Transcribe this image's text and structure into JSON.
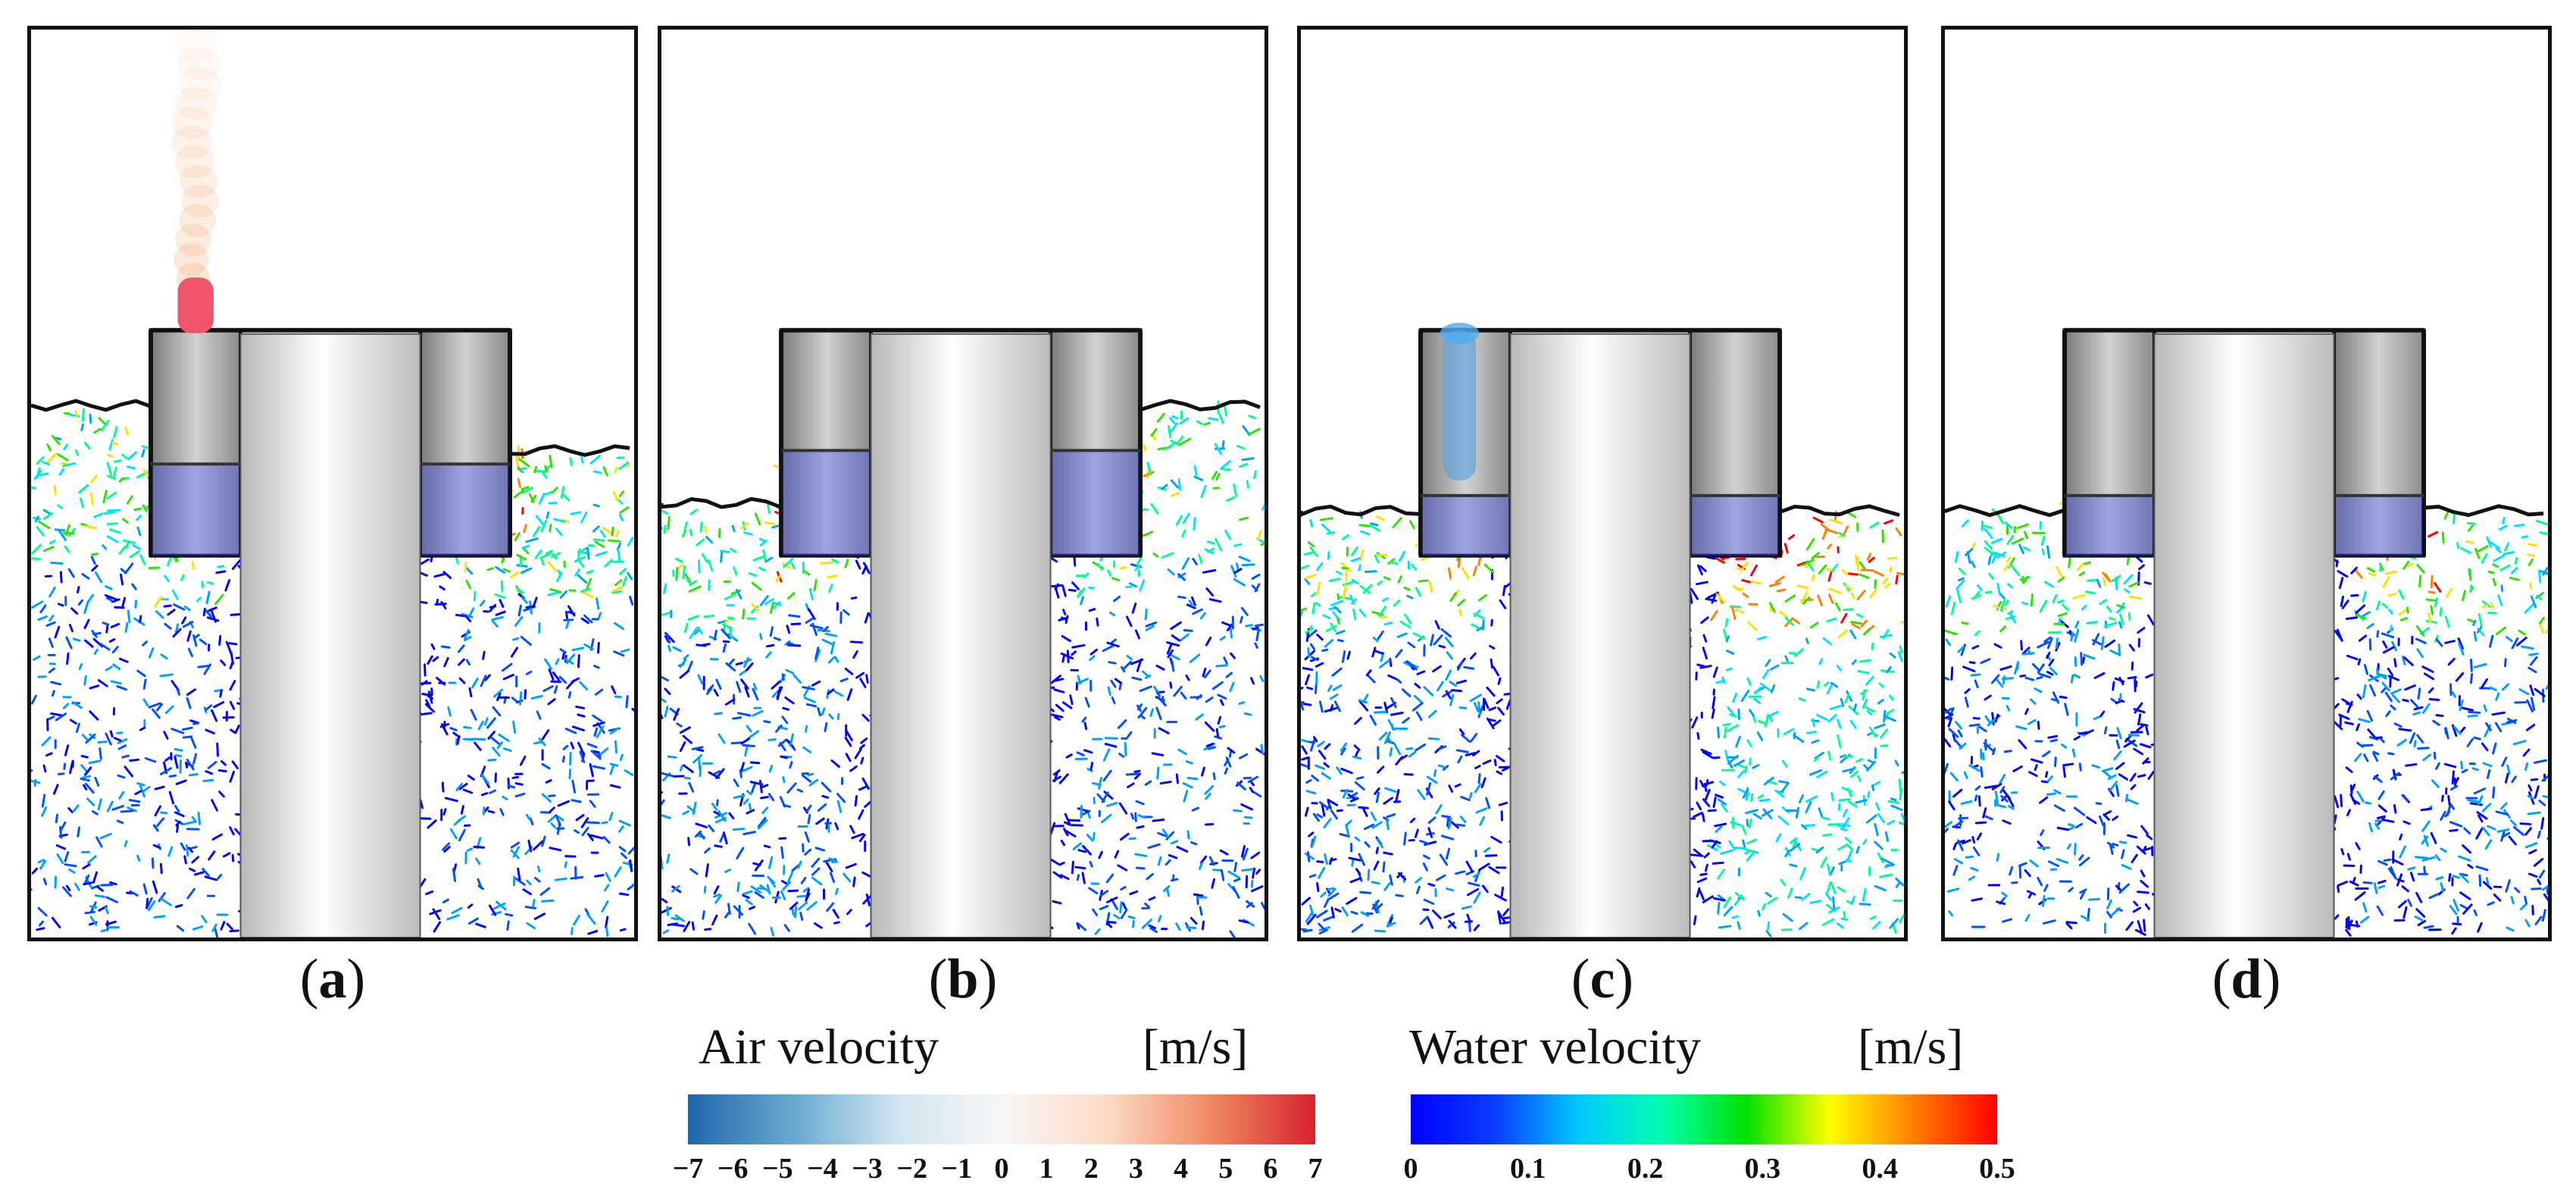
{
  "panels": [
    {
      "id": "a",
      "label": "a",
      "fluid_level": "high",
      "air_jet": "red"
    },
    {
      "id": "b",
      "label": "b",
      "fluid_level": "medium",
      "air_jet": "none"
    },
    {
      "id": "c",
      "label": "c",
      "fluid_level": "low",
      "air_jet": "blue"
    },
    {
      "id": "d",
      "label": "d",
      "fluid_level": "low",
      "air_jet": "none"
    }
  ],
  "air_colorbar": {
    "title": "Air velocity",
    "unit": "[m/s]",
    "ticks": [
      "−7",
      "−6",
      "−5",
      "−4",
      "−3",
      "−2",
      "−1",
      "0",
      "1",
      "2",
      "3",
      "4",
      "5",
      "6",
      "7"
    ],
    "colors": [
      "#2166ac",
      "#67a9cf",
      "#d1e5f0",
      "#f7f7f7",
      "#fddbc7",
      "#ef8a62",
      "#d6232e"
    ]
  },
  "water_colorbar": {
    "title": "Water velocity",
    "unit": "[m/s]",
    "ticks": [
      "0",
      "0.1",
      "0.2",
      "0.3",
      "0.4",
      "0.5"
    ],
    "colors": [
      "#0000ff",
      "#0a3cff",
      "#00c8ff",
      "#00ffb0",
      "#00e000",
      "#ffff00",
      "#ff8000",
      "#ff0000"
    ]
  }
}
